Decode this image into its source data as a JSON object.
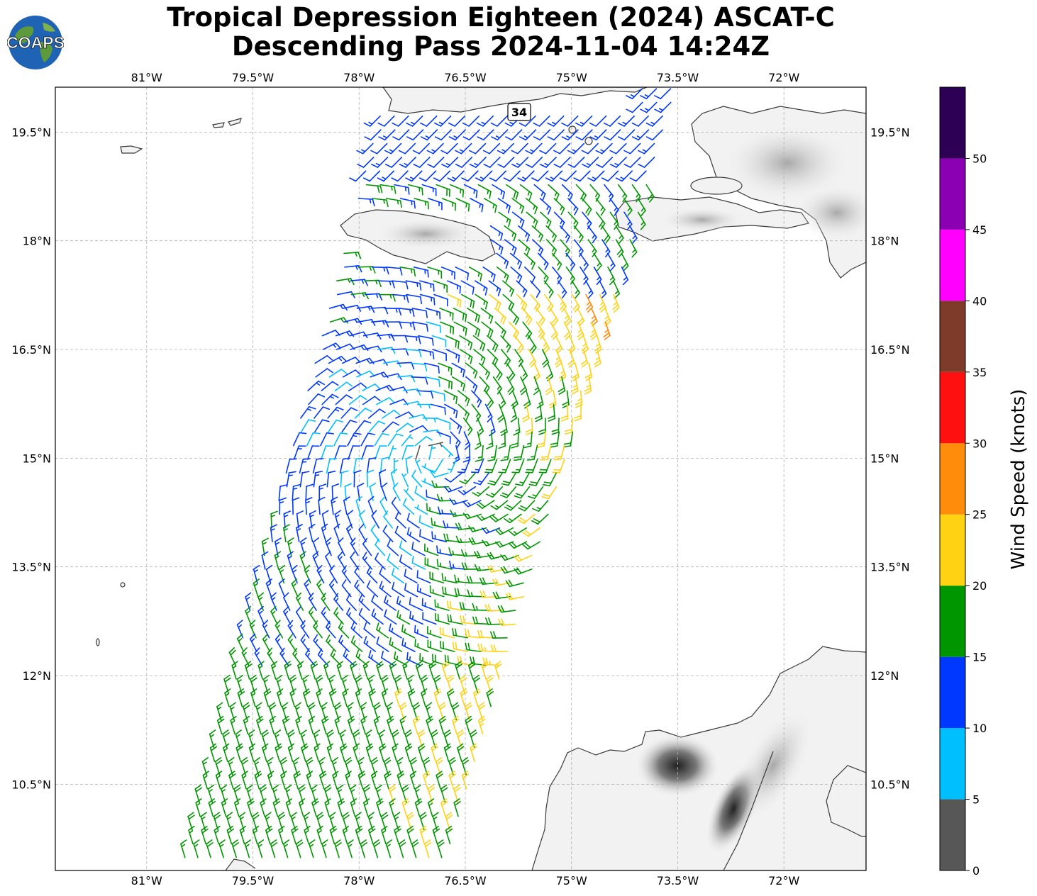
{
  "title": {
    "line1": "Tropical Depression Eighteen (2024) ASCAT-C",
    "line2": "Descending Pass 2024-11-04 14:24Z"
  },
  "logo": {
    "text": "COAPS",
    "icon": "globe-logo-icon"
  },
  "map": {
    "lon_range": [
      -82.29,
      -70.84
    ],
    "lat_range": [
      9.31,
      20.12
    ],
    "x_ticks": [
      "81°W",
      "79.5°W",
      "78°W",
      "76.5°W",
      "75°W",
      "73.5°W",
      "72°W"
    ],
    "x_tick_values": [
      -81,
      -79.5,
      -78,
      -76.5,
      -75,
      -73.5,
      -72
    ],
    "y_ticks": [
      "19.5°N",
      "18°N",
      "16.5°N",
      "15°N",
      "13.5°N",
      "12°N",
      "10.5°N"
    ],
    "y_tick_values": [
      19.5,
      18,
      16.5,
      15,
      13.5,
      12,
      10.5
    ],
    "grid": true,
    "annotation": {
      "text": "34",
      "lon": -76.1,
      "lat": 19.9
    },
    "storm_center": {
      "lon": -76.9,
      "lat": 15.0
    },
    "swath": {
      "corners": [
        [
          -77.7,
          20.1
        ],
        [
          -73.5,
          20.1
        ],
        [
          -76.8,
          9.3
        ],
        [
          -80.6,
          9.3
        ]
      ]
    }
  },
  "chart_data": {
    "type": "wind-barbs",
    "title": "Tropical Depression Eighteen (2024) ASCAT-C Descending Pass 2024-11-04 14:24Z",
    "xlabel": "",
    "ylabel": "",
    "colorbar": {
      "label": "Wind Speed (knots)",
      "bins": [
        {
          "min": 0,
          "max": 5,
          "color": "#575757"
        },
        {
          "min": 5,
          "max": 10,
          "color": "#00bfff"
        },
        {
          "min": 10,
          "max": 15,
          "color": "#0038ff"
        },
        {
          "min": 15,
          "max": 20,
          "color": "#009600"
        },
        {
          "min": 20,
          "max": 25,
          "color": "#ffd214"
        },
        {
          "min": 25,
          "max": 30,
          "color": "#ff8c0a"
        },
        {
          "min": 30,
          "max": 35,
          "color": "#ff1010"
        },
        {
          "min": 35,
          "max": 40,
          "color": "#7f3b2a"
        },
        {
          "min": 40,
          "max": 45,
          "color": "#ff00ff"
        },
        {
          "min": 45,
          "max": 50,
          "color": "#8c00b4"
        },
        {
          "min": 50,
          "max": 55,
          "color": "#2d0055"
        }
      ],
      "tick_labels": [
        "0",
        "5",
        "10",
        "15",
        "20",
        "25",
        "30",
        "35",
        "40",
        "45",
        "50"
      ]
    }
  }
}
